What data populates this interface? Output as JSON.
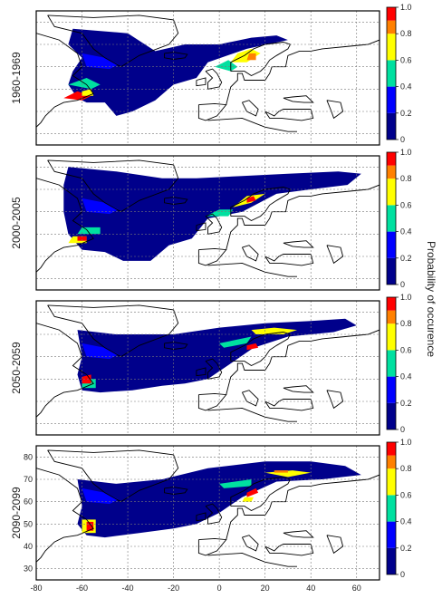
{
  "chart_data": {
    "type": "heatmap",
    "colorbar": {
      "label": "Probability of occurence",
      "ticks": [
        "0",
        "0.2",
        "0.4",
        "0.6",
        "0.8",
        "1.0"
      ],
      "range": [
        0,
        1
      ],
      "bands": [
        {
          "from": 0.0,
          "to": 0.2,
          "color": "#00008b"
        },
        {
          "from": 0.2,
          "to": 0.4,
          "color": "#0000ff"
        },
        {
          "from": 0.4,
          "to": 0.6,
          "color": "#00e0a0"
        },
        {
          "from": 0.6,
          "to": 0.8,
          "color": "#ffff00"
        },
        {
          "from": 0.8,
          "to": 0.9,
          "color": "#ff8000"
        },
        {
          "from": 0.9,
          "to": 1.0,
          "color": "#ff0000"
        }
      ]
    },
    "xlim": [
      -80,
      70
    ],
    "ylim": [
      25,
      85
    ],
    "x_ticks": [
      "-80",
      "-60",
      "-40",
      "-20",
      "0",
      "20",
      "40",
      "60"
    ],
    "x_tick_values": [
      -80,
      -60,
      -40,
      -20,
      0,
      20,
      40,
      60
    ],
    "y_ticks": [
      "30",
      "40",
      "50",
      "60",
      "70",
      "80"
    ],
    "y_tick_values": [
      30,
      40,
      50,
      60,
      70,
      80
    ],
    "grid": true,
    "panels": [
      {
        "label": "1960-1969"
      },
      {
        "label": "2000-2005"
      },
      {
        "label": "2050-2059"
      },
      {
        "label": "2090-2099"
      }
    ]
  }
}
